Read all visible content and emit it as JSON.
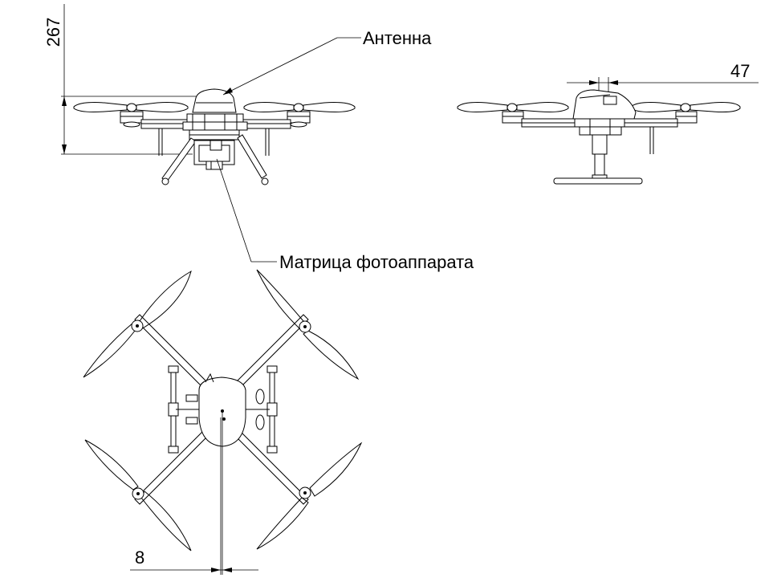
{
  "labels": {
    "antenna": "Антенна",
    "camera_matrix": "Матрица фотоаппарата"
  },
  "dimensions": {
    "height": "267",
    "offset_side": "47",
    "offset_top": "8"
  },
  "colors": {
    "line": "#000000",
    "background": "#ffffff"
  }
}
